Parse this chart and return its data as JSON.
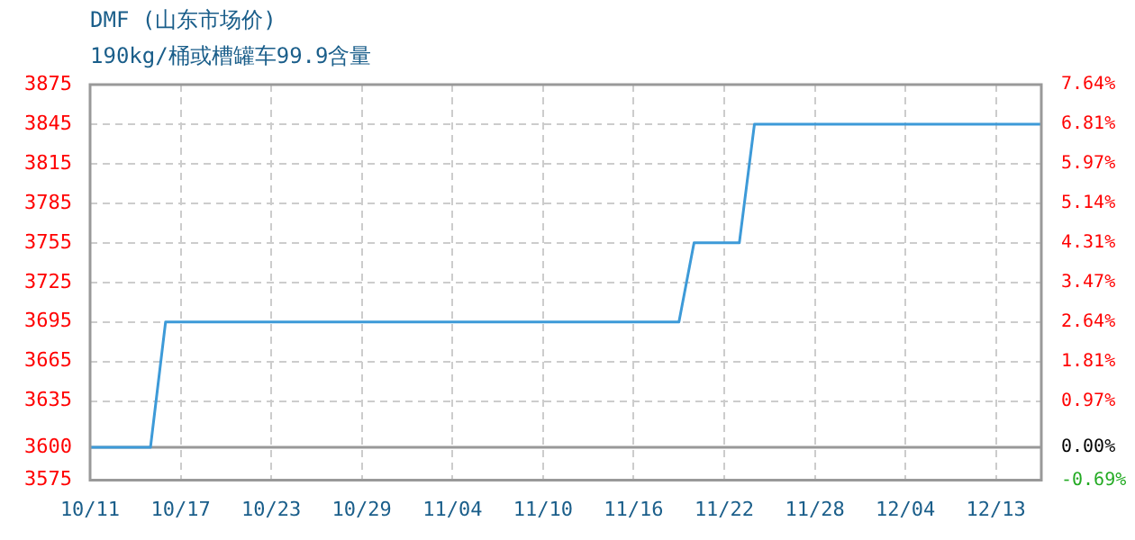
{
  "chart_data": {
    "type": "line",
    "title": "DMF (山东市场价)",
    "subtitle": "190kg/桶或槽罐车99.9含量",
    "categories": [
      "10/11",
      null,
      null,
      null,
      null,
      null,
      "10/17",
      null,
      null,
      null,
      null,
      null,
      "10/23",
      null,
      null,
      null,
      null,
      null,
      "10/29",
      null,
      null,
      null,
      null,
      null,
      "11/04",
      null,
      null,
      null,
      null,
      null,
      "11/10",
      null,
      null,
      null,
      null,
      null,
      "11/16",
      null,
      null,
      null,
      null,
      null,
      "11/22",
      null,
      null,
      null,
      null,
      null,
      "11/28",
      null,
      null,
      null,
      null,
      null,
      "12/04",
      null,
      null,
      null,
      null,
      null,
      "12/13",
      null,
      null,
      null
    ],
    "series": [
      {
        "color": "#3d9ad8",
        "values": [
          3600,
          3600,
          3600,
          3600,
          3600,
          3695,
          3695,
          3695,
          3695,
          3695,
          3695,
          3695,
          3695,
          3695,
          3695,
          3695,
          3695,
          3695,
          3695,
          3695,
          3695,
          3695,
          3695,
          3695,
          3695,
          3695,
          3695,
          3695,
          3695,
          3695,
          3695,
          3695,
          3695,
          3695,
          3695,
          3695,
          3695,
          3695,
          3695,
          3695,
          3755,
          3755,
          3755,
          3755,
          3845,
          3845,
          3845,
          3845,
          3845,
          3845,
          3845,
          3845,
          3845,
          3845,
          3845,
          3845,
          3845,
          3845,
          3845,
          3845,
          3845,
          3845,
          3845,
          3845
        ]
      }
    ],
    "ylim": [
      3575,
      3875
    ],
    "yticks": [
      3575,
      3600,
      3635,
      3665,
      3695,
      3725,
      3755,
      3785,
      3815,
      3845,
      3875
    ],
    "y2lim": [
      -0.69,
      7.64
    ],
    "y2ticks": [
      {
        "value": -0.69,
        "label": "-0.69%"
      },
      {
        "value": 0,
        "label": "0.00%"
      },
      {
        "value": 0.97,
        "label": "0.97%"
      },
      {
        "value": 1.81,
        "label": "1.81%"
      },
      {
        "value": 2.64,
        "label": "2.64%"
      },
      {
        "value": 3.47,
        "label": "3.47%"
      },
      {
        "value": 4.31,
        "label": "4.31%"
      },
      {
        "value": 5.14,
        "label": "5.14%"
      },
      {
        "value": 5.97,
        "label": "5.97%"
      },
      {
        "value": 6.81,
        "label": "6.81%"
      },
      {
        "value": 7.64,
        "label": "7.64%"
      }
    ],
    "grid": true,
    "ref_lines": [
      {
        "axis": "y",
        "value": 3600,
        "color": "#999999",
        "line_style": "solid"
      }
    ]
  }
}
